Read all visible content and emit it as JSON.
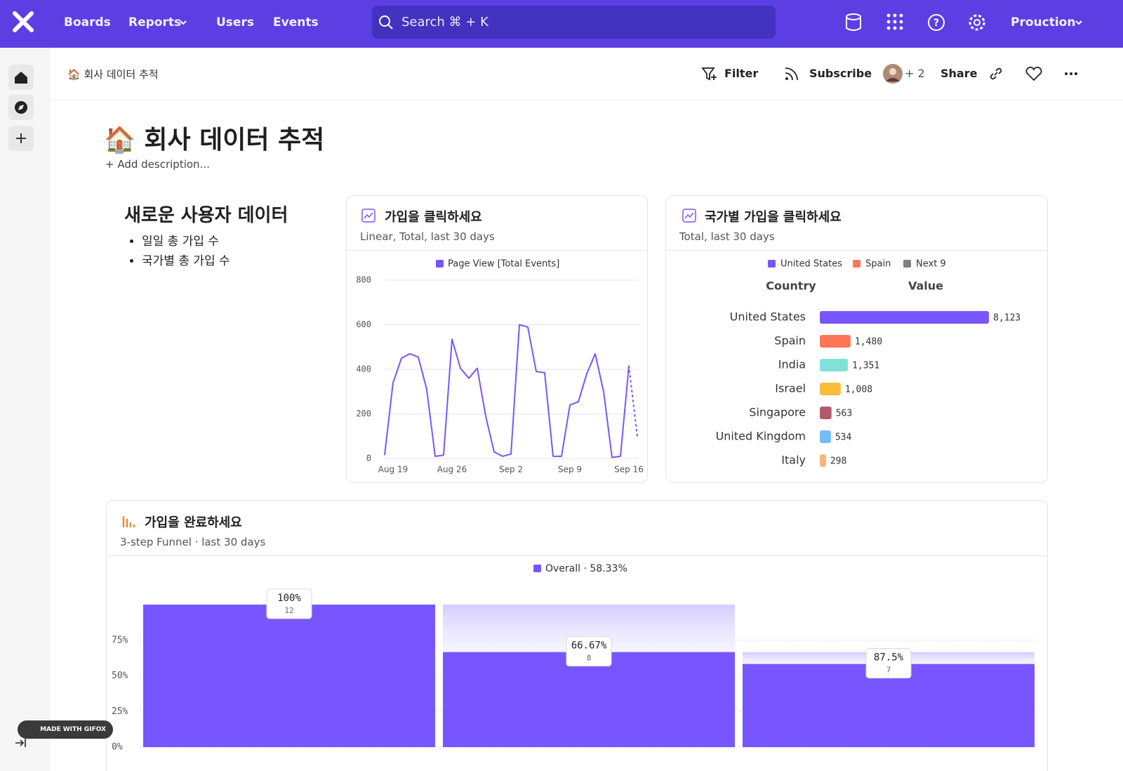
{
  "nav": {
    "items": [
      "Boards",
      "Reports",
      "Users",
      "Events"
    ],
    "search": "Search  ⌘ + K",
    "project": "Prouction"
  },
  "toolbar": {
    "breadcrumb": "🏠 회사 데이터 추적",
    "filter": "Filter",
    "subscribe": "Subscribe",
    "members": "+ 2",
    "share": "Share"
  },
  "header": {
    "title": "🏠 회사 데이터 추적",
    "description": "+ Add description..."
  },
  "text_card": {
    "title": "새로운 사용자 데이터",
    "bullets": [
      "일일 총 가입 수",
      "국가별 총 가입 수"
    ]
  },
  "chart_data": [
    {
      "type": "line",
      "title": "가입을 클릭하세요",
      "subtitle": "Linear, Total, last 30 days",
      "x": [
        null,
        "Aug 19",
        null,
        null,
        null,
        null,
        null,
        null,
        "Aug 26",
        null,
        null,
        null,
        null,
        null,
        null,
        "Sep 2",
        null,
        null,
        null,
        null,
        null,
        null,
        "Sep 9",
        null,
        null,
        null,
        null,
        null,
        null,
        "Sep 16",
        null
      ],
      "series": [
        {
          "name": "Page View [Total Events]",
          "color": "#7856ff",
          "values": [
            15,
            340,
            450,
            470,
            455,
            310,
            10,
            15,
            535,
            405,
            360,
            405,
            190,
            30,
            10,
            20,
            600,
            590,
            390,
            385,
            10,
            10,
            240,
            255,
            380,
            470,
            300,
            5,
            10,
            415,
            100
          ]
        }
      ],
      "ylim": [
        0,
        800
      ],
      "yticks": [
        0,
        200,
        400,
        600,
        800
      ],
      "grid": true
    },
    {
      "type": "hbar",
      "title": "국가별 가입을 클릭하세요",
      "subtitle": "Total, last 30 days",
      "category_header": "Country",
      "value_header": "Value",
      "legend": [
        {
          "name": "United States",
          "color": "#7856ff"
        },
        {
          "name": "Spain",
          "color": "#ff7557"
        },
        {
          "name": "Next 9",
          "color": "#808080"
        }
      ],
      "categories": [
        "United States",
        "Spain",
        "India",
        "Israel",
        "Singapore",
        "United Kingdom",
        "Italy"
      ],
      "values": [
        8123,
        1480,
        1351,
        1008,
        563,
        534,
        298
      ],
      "value_labels": [
        "8,123",
        "1,480",
        "1,351",
        "1,008",
        "563",
        "534",
        "298"
      ],
      "colors": [
        "#7856ff",
        "#ff7557",
        "#80e1d9",
        "#f8bc3b",
        "#b2596e",
        "#72bef4",
        "#ffb27a"
      ]
    },
    {
      "type": "funnel",
      "title": "가입을 완료하세요",
      "subtitle": "3-step Funnel · last 30 days",
      "series": [
        {
          "name": "Overall · 58.33%",
          "color": "#7856ff",
          "values": [
            100,
            66.67,
            58.33
          ]
        }
      ],
      "step_labels": [
        "100%",
        "66.67%",
        "87.5%"
      ],
      "counts": [
        12,
        8,
        7
      ],
      "ylim": [
        0,
        100
      ],
      "yticks": [
        {
          "value": 0,
          "label": "0%"
        },
        {
          "value": 25,
          "label": "25%"
        },
        {
          "value": 50,
          "label": "50%"
        },
        {
          "value": 75,
          "label": "75%"
        }
      ],
      "grid": true
    }
  ],
  "badge": "MADE WITH GIFOX"
}
